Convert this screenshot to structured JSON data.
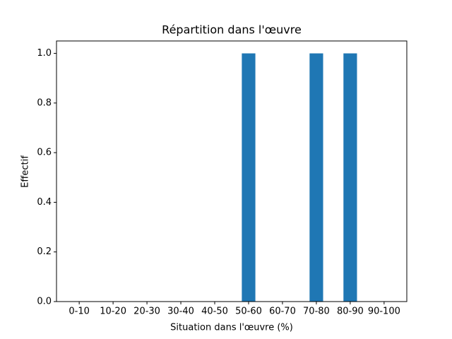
{
  "chart_data": {
    "type": "bar",
    "title": "Répartition dans l'œuvre",
    "x_label": "Situation dans l'œuvre (%)",
    "y_label": "Effectif",
    "categories": [
      "0-10",
      "10-20",
      "20-30",
      "30-40",
      "40-50",
      "50-60",
      "60-70",
      "70-80",
      "80-90",
      "90-100"
    ],
    "values": [
      0,
      0,
      0,
      0,
      0,
      1,
      0,
      1,
      1,
      0
    ],
    "color": "#1f77b4",
    "ylim": [
      0,
      1.05
    ],
    "yticks": [
      {
        "value": 0,
        "label": "0.0"
      },
      {
        "value": 0.2,
        "label": "0.2"
      },
      {
        "value": 0.4,
        "label": "0.4"
      },
      {
        "value": 0.6,
        "label": "0.6"
      },
      {
        "value": 0.8,
        "label": "0.8"
      },
      {
        "value": 1,
        "label": "1.0"
      }
    ],
    "grid": false
  }
}
